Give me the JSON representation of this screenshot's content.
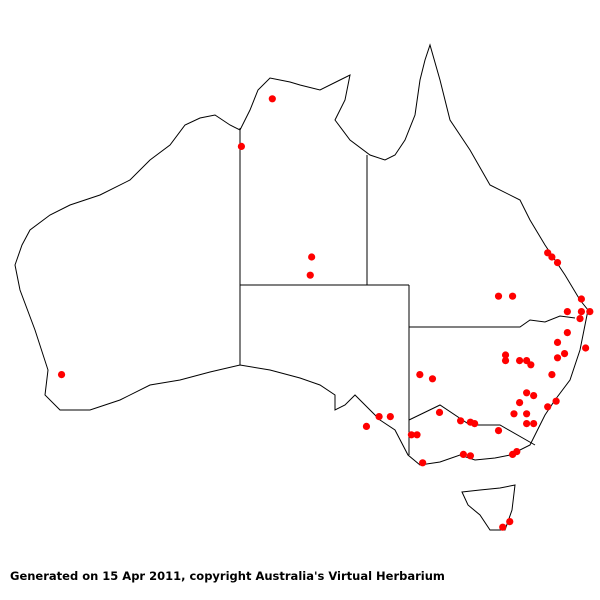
{
  "map": {
    "region": "Australia",
    "colors": {
      "marker": "#ff0000",
      "outline": "#000000",
      "background": "#ffffff"
    },
    "occurrences": [
      [
        131.3,
        -12.7
      ],
      [
        129.1,
        -16.1
      ],
      [
        134.1,
        -24.0
      ],
      [
        134.0,
        -25.3
      ],
      [
        116.3,
        -32.4
      ],
      [
        150.9,
        -23.7
      ],
      [
        151.2,
        -24.0
      ],
      [
        151.6,
        -24.4
      ],
      [
        147.4,
        -26.8
      ],
      [
        148.4,
        -26.8
      ],
      [
        153.3,
        -27.0
      ],
      [
        152.3,
        -27.9
      ],
      [
        153.3,
        -27.9
      ],
      [
        153.9,
        -27.9
      ],
      [
        153.2,
        -28.4
      ],
      [
        152.3,
        -29.4
      ],
      [
        151.6,
        -30.1
      ],
      [
        153.6,
        -30.5
      ],
      [
        152.1,
        -30.9
      ],
      [
        151.6,
        -31.2
      ],
      [
        147.9,
        -31.0
      ],
      [
        147.9,
        -31.4
      ],
      [
        148.9,
        -31.4
      ],
      [
        149.4,
        -31.4
      ],
      [
        149.7,
        -31.7
      ],
      [
        141.8,
        -32.4
      ],
      [
        142.7,
        -32.7
      ],
      [
        151.2,
        -32.4
      ],
      [
        149.4,
        -33.7
      ],
      [
        149.9,
        -33.9
      ],
      [
        148.9,
        -34.4
      ],
      [
        151.5,
        -34.3
      ],
      [
        150.9,
        -34.7
      ],
      [
        148.5,
        -35.2
      ],
      [
        149.4,
        -35.2
      ],
      [
        149.4,
        -35.9
      ],
      [
        149.9,
        -35.9
      ],
      [
        143.2,
        -35.1
      ],
      [
        144.7,
        -35.7
      ],
      [
        145.4,
        -35.8
      ],
      [
        145.7,
        -35.9
      ],
      [
        147.4,
        -36.4
      ],
      [
        141.2,
        -36.7
      ],
      [
        141.6,
        -36.7
      ],
      [
        144.9,
        -38.1
      ],
      [
        145.4,
        -38.2
      ],
      [
        142.0,
        -38.7
      ],
      [
        148.4,
        -38.1
      ],
      [
        148.7,
        -37.9
      ],
      [
        138.0,
        -36.1
      ],
      [
        138.9,
        -35.4
      ],
      [
        139.7,
        -35.4
      ],
      [
        148.2,
        -42.9
      ],
      [
        147.7,
        -43.3
      ]
    ]
  },
  "footer": {
    "text": "Generated on 15 Apr 2011, copyright Australia's Virtual Herbarium"
  }
}
